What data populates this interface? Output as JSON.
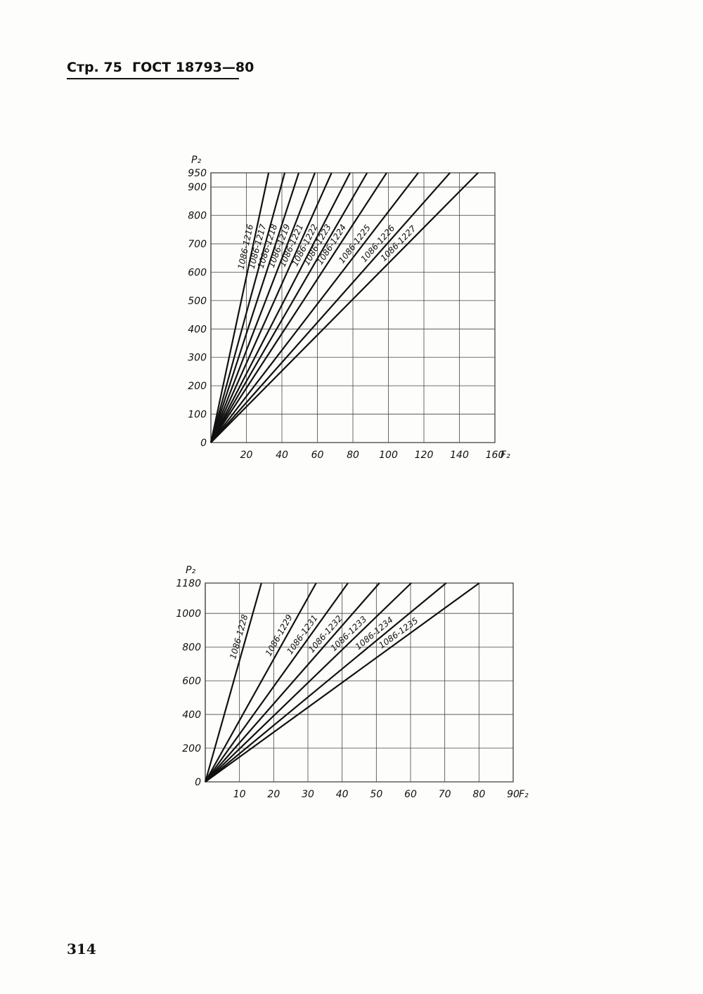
{
  "header": {
    "page": "Стр. 75",
    "standard": "ГОСТ 18793—80"
  },
  "page_number": "314",
  "chart_data": [
    {
      "type": "line",
      "color": "#111111",
      "grid": true,
      "x_label": "F₂",
      "y_label": "P₂",
      "xlim": [
        0,
        160
      ],
      "ylim": [
        0,
        950
      ],
      "xticks": [
        20,
        40,
        60,
        80,
        100,
        120,
        140,
        160
      ],
      "yticks": [
        0,
        100,
        200,
        300,
        400,
        500,
        600,
        700,
        800,
        900,
        950
      ],
      "series": [
        {
          "name": "1086-1216",
          "x": [
            0,
            32.5
          ],
          "values": [
            0,
            950
          ]
        },
        {
          "name": "1086-1217",
          "x": [
            0,
            41.6
          ],
          "values": [
            0,
            950
          ]
        },
        {
          "name": "1086-1218",
          "x": [
            0,
            49.5
          ],
          "values": [
            0,
            950
          ]
        },
        {
          "name": "1086-1219",
          "x": [
            0,
            58.6
          ],
          "values": [
            0,
            950
          ]
        },
        {
          "name": "1086-1221",
          "x": [
            0,
            68
          ],
          "values": [
            0,
            950
          ]
        },
        {
          "name": "1086-1222",
          "x": [
            0,
            78.4
          ],
          "values": [
            0,
            950
          ]
        },
        {
          "name": "1086-1223",
          "x": [
            0,
            88
          ],
          "values": [
            0,
            950
          ]
        },
        {
          "name": "1086-1224",
          "x": [
            0,
            99
          ],
          "values": [
            0,
            950
          ]
        },
        {
          "name": "1086-1225",
          "x": [
            0,
            116.8
          ],
          "values": [
            0,
            950
          ]
        },
        {
          "name": "1086-1226",
          "x": [
            0,
            134.7
          ],
          "values": [
            0,
            950
          ]
        },
        {
          "name": "1086-1227",
          "x": [
            0,
            150.5
          ],
          "values": [
            0,
            950
          ]
        }
      ]
    },
    {
      "type": "line",
      "color": "#111111",
      "grid": true,
      "x_label": "F₂",
      "y_label": "P₂",
      "xlim": [
        0,
        90
      ],
      "ylim": [
        0,
        1180
      ],
      "xticks": [
        10,
        20,
        30,
        40,
        50,
        60,
        70,
        80,
        90
      ],
      "yticks": [
        0,
        200,
        400,
        600,
        800,
        1000,
        1180
      ],
      "series": [
        {
          "name": "1086-1228",
          "x": [
            0,
            16.4
          ],
          "values": [
            0,
            1180
          ]
        },
        {
          "name": "1086-1229",
          "x": [
            0,
            32.4
          ],
          "values": [
            0,
            1180
          ]
        },
        {
          "name": "1086-1231",
          "x": [
            0,
            41.7
          ],
          "values": [
            0,
            1180
          ]
        },
        {
          "name": "1086-1232",
          "x": [
            0,
            50.9
          ],
          "values": [
            0,
            1180
          ]
        },
        {
          "name": "1086-1233",
          "x": [
            0,
            60.2
          ],
          "values": [
            0,
            1180
          ]
        },
        {
          "name": "1086-1234",
          "x": [
            0,
            70.4
          ],
          "values": [
            0,
            1180
          ]
        },
        {
          "name": "1086-1235",
          "x": [
            0,
            80.1
          ],
          "values": [
            0,
            1180
          ]
        }
      ]
    }
  ]
}
